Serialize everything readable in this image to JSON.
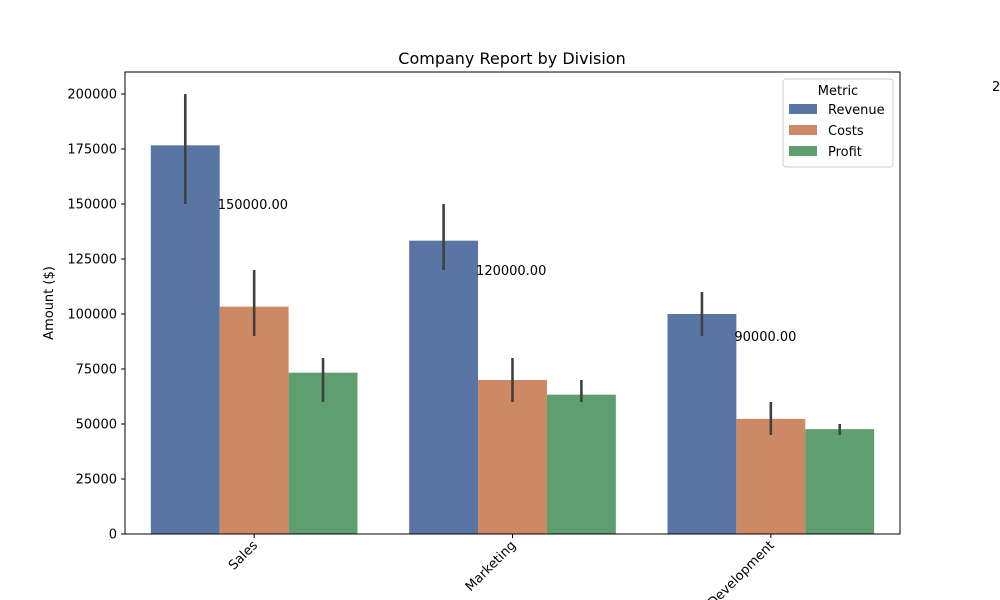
{
  "chart_data": {
    "type": "bar",
    "title": "Company Report by Division",
    "xlabel": "",
    "ylabel": "Amount ($)",
    "ylim": [
      0,
      210000
    ],
    "yticks": [
      0,
      25000,
      50000,
      75000,
      100000,
      125000,
      150000,
      175000,
      200000
    ],
    "categories": [
      "Sales",
      "Marketing",
      "Development"
    ],
    "grid": false,
    "legend": {
      "title": "Metric",
      "placement": "top-right"
    },
    "series": [
      {
        "name": "Revenue",
        "color": "#5875a4",
        "values": [
          176667,
          133333,
          100000
        ],
        "error_low": [
          150000,
          120000,
          90000
        ],
        "error_high": [
          200000,
          150000,
          110000
        ]
      },
      {
        "name": "Costs",
        "color": "#cc8963",
        "values": [
          103333,
          70000,
          52333
        ],
        "error_low": [
          90000,
          60000,
          45000
        ],
        "error_high": [
          120000,
          80000,
          60000
        ]
      },
      {
        "name": "Profit",
        "color": "#5f9e6e",
        "values": [
          73333,
          63333,
          47667
        ],
        "error_low": [
          60000,
          60000,
          45000
        ],
        "error_high": [
          80000,
          70000,
          50000
        ]
      }
    ],
    "annotations": [
      {
        "text": "150000.00",
        "category": "Sales",
        "value": 150000
      },
      {
        "text": "120000.00",
        "category": "Marketing",
        "value": 120000
      },
      {
        "text": "90000.00",
        "category": "Development",
        "value": 90000
      }
    ],
    "stray_label": "2"
  }
}
